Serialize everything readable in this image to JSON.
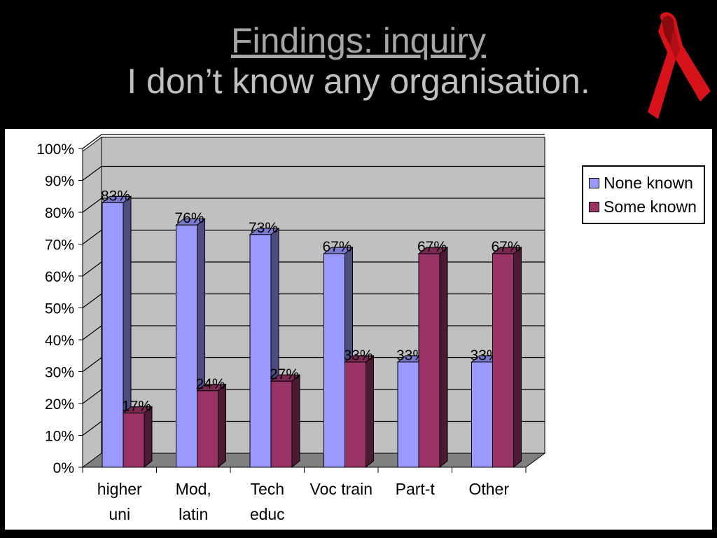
{
  "slide": {
    "title_line1": "Findings: inquiry",
    "title_line2": "I don’t know any organisation."
  },
  "icons": {
    "ribbon": "red-ribbon-icon"
  },
  "colors": {
    "series_none": "#9999ff",
    "series_none_side": "#4d4d80",
    "series_some": "#993366",
    "series_some_side": "#4d1a33",
    "wall": "#c0c0c0",
    "floor": "#808080",
    "ribbon": "#d8121b"
  },
  "chart_data": {
    "type": "bar",
    "categories": [
      [
        "higher",
        "uni"
      ],
      [
        "Mod,",
        "latin"
      ],
      [
        "Tech",
        "educ"
      ],
      [
        "Voc train"
      ],
      [
        "Part-t"
      ],
      [
        "Other"
      ]
    ],
    "series": [
      {
        "name": "None known",
        "values": [
          83,
          76,
          73,
          67,
          33,
          33
        ],
        "labels": [
          "83%",
          "76%",
          "73%",
          "67%",
          "33%",
          "33%"
        ]
      },
      {
        "name": "Some known",
        "values": [
          17,
          24,
          27,
          33,
          67,
          67
        ],
        "labels": [
          "17%",
          "24%",
          "27%",
          "33%",
          "67%",
          "67%"
        ]
      }
    ],
    "yticks": [
      "0%",
      "10%",
      "20%",
      "30%",
      "40%",
      "50%",
      "60%",
      "70%",
      "80%",
      "90%",
      "100%"
    ],
    "ylim": [
      0,
      100
    ],
    "grid": true,
    "legend": "right"
  }
}
